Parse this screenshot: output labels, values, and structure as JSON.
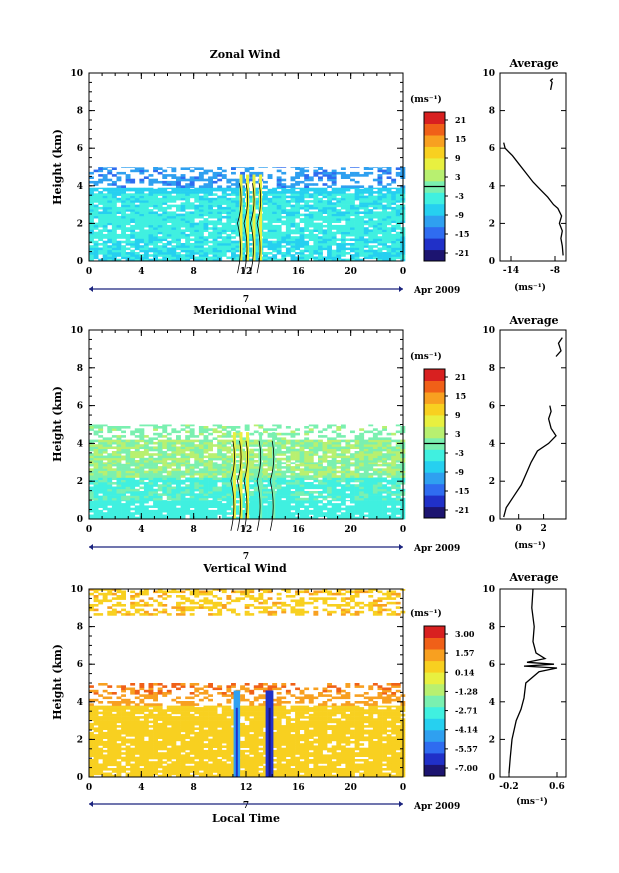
{
  "chart_data": [
    {
      "type": "heatmap",
      "title": "Zonal Wind",
      "ylabel": "Height (km)",
      "xlabel": "",
      "xlim": [
        0,
        24
      ],
      "ylim": [
        0,
        10
      ],
      "x_ticks": [
        "0",
        "4",
        "8",
        "12",
        "16",
        "20",
        "0"
      ],
      "y_ticks": [
        "0",
        "2",
        "4",
        "6",
        "8",
        "10"
      ],
      "date_label": "Apr 2009",
      "date_marker": "7",
      "colorbar": {
        "unit": "(ms⁻¹)",
        "ticks": [
          "21",
          "15",
          "9",
          "3",
          "-3",
          "-9",
          "-15",
          "-21"
        ],
        "range": [
          -24,
          24
        ],
        "zero_contour": true
      },
      "field": {
        "rows": [
          {
            "z_from": 0.0,
            "z_to": 1.2,
            "value": -5.5
          },
          {
            "z_from": 1.2,
            "z_to": 2.4,
            "value": -4.5
          },
          {
            "z_from": 2.4,
            "z_to": 3.6,
            "value": -5.0
          },
          {
            "z_from": 3.6,
            "z_to": 3.9,
            "value": -7.5
          },
          {
            "z_from": 3.9,
            "z_to": 5.0,
            "value": -12.0
          }
        ],
        "convective_window": [
          10.5,
          14.5
        ],
        "convective_top": 4.6
      },
      "average_profile": {
        "title": "Average",
        "xlabel": "(ms⁻¹)",
        "xlim": [
          -15.5,
          -6.5
        ],
        "x_ticks": [
          "-14",
          "-8"
        ],
        "x_tick_values": [
          -14,
          -8
        ],
        "y_ticks": [
          "0",
          "2",
          "4",
          "6",
          "8",
          "10"
        ],
        "points": [
          [
            -6.9,
            0.3
          ],
          [
            -7.0,
            0.8
          ],
          [
            -7.2,
            1.2
          ],
          [
            -7.0,
            1.6
          ],
          [
            -7.4,
            2.0
          ],
          [
            -7.1,
            2.4
          ],
          [
            -7.6,
            2.8
          ],
          [
            -8.2,
            3.0
          ],
          [
            -9.0,
            3.4
          ],
          [
            -10.0,
            3.8
          ],
          [
            -11.0,
            4.2
          ],
          [
            -12.0,
            4.7
          ],
          [
            -13.0,
            5.2
          ],
          [
            -13.8,
            5.6
          ],
          [
            -14.8,
            6.0
          ],
          [
            -15.0,
            6.3
          ]
        ],
        "points_upper": [
          [
            -8.6,
            9.1
          ],
          [
            -8.4,
            9.5
          ],
          [
            -8.6,
            9.6
          ],
          [
            -8.3,
            9.7
          ]
        ]
      }
    },
    {
      "type": "heatmap",
      "title": "Meridional Wind",
      "ylabel": "Height (km)",
      "xlabel": "",
      "xlim": [
        0,
        24
      ],
      "ylim": [
        0,
        10
      ],
      "x_ticks": [
        "0",
        "4",
        "8",
        "12",
        "16",
        "20",
        "0"
      ],
      "y_ticks": [
        "0",
        "2",
        "4",
        "6",
        "8",
        "10"
      ],
      "date_label": "Apr 2009",
      "date_marker": "7",
      "colorbar": {
        "unit": "(ms⁻¹)",
        "ticks": [
          "21",
          "15",
          "9",
          "3",
          "-3",
          "-9",
          "-15",
          "-21"
        ],
        "range": [
          -24,
          24
        ],
        "zero_contour": true
      },
      "field": {
        "rows": [
          {
            "z_from": 0.0,
            "z_to": 1.0,
            "value": -4.0
          },
          {
            "z_from": 1.0,
            "z_to": 2.2,
            "value": -2.5
          },
          {
            "z_from": 2.2,
            "z_to": 3.0,
            "value": 1.5
          },
          {
            "z_from": 3.0,
            "z_to": 4.2,
            "value": 2.0
          },
          {
            "z_from": 4.2,
            "z_to": 5.0,
            "value": 0.8
          }
        ],
        "convective_window": [
          10.5,
          14.5
        ],
        "convective_top": 4.6
      },
      "average_profile": {
        "title": "Average",
        "xlabel": "(ms⁻¹)",
        "xlim": [
          -1.5,
          3.8
        ],
        "x_ticks": [
          "0",
          "2"
        ],
        "x_tick_values": [
          0,
          2
        ],
        "y_ticks": [
          "0",
          "2",
          "4",
          "6",
          "8",
          "10"
        ],
        "points": [
          [
            -1.2,
            0.1
          ],
          [
            -1.0,
            0.6
          ],
          [
            -0.4,
            1.2
          ],
          [
            0.2,
            1.8
          ],
          [
            0.6,
            2.4
          ],
          [
            1.0,
            3.0
          ],
          [
            1.5,
            3.6
          ],
          [
            2.4,
            4.0
          ],
          [
            3.0,
            4.4
          ],
          [
            2.6,
            4.8
          ],
          [
            2.4,
            5.3
          ],
          [
            2.6,
            5.7
          ],
          [
            2.5,
            6.0
          ]
        ],
        "points_upper": [
          [
            3.0,
            8.6
          ],
          [
            3.4,
            8.9
          ],
          [
            3.2,
            9.3
          ],
          [
            3.5,
            9.6
          ]
        ]
      }
    },
    {
      "type": "heatmap",
      "title": "Vertical Wind",
      "ylabel": "Height (km)",
      "xlabel": "Local Time",
      "xlim": [
        0,
        24
      ],
      "ylim": [
        0,
        10
      ],
      "x_ticks": [
        "0",
        "4",
        "8",
        "12",
        "16",
        "20",
        "0"
      ],
      "y_ticks": [
        "0",
        "2",
        "4",
        "6",
        "8",
        "10"
      ],
      "date_label": "Apr 2009",
      "date_marker": "7",
      "colorbar": {
        "unit": "(ms⁻¹)",
        "ticks": [
          "3.00",
          "1.57",
          "0.14",
          "-1.28",
          "-2.71",
          "-4.14",
          "-5.57",
          "-7.00"
        ],
        "range": [
          -7.7,
          3.7
        ],
        "zero_contour": false
      },
      "field": {
        "rows": [
          {
            "z_from": 0.0,
            "z_to": 3.8,
            "value": 0.6
          },
          {
            "z_from": 3.8,
            "z_to": 4.4,
            "value": 1.4
          },
          {
            "z_from": 4.4,
            "z_to": 5.0,
            "value": 1.9
          },
          {
            "z_from": 8.6,
            "z_to": 10.0,
            "value": 0.9
          }
        ],
        "downdrafts": [
          {
            "x": 11.3,
            "width": 0.5,
            "value": -4.8
          },
          {
            "x": 13.8,
            "width": 0.6,
            "value": -6.5
          }
        ],
        "convective_top": 4.6
      },
      "average_profile": {
        "title": "Average",
        "xlabel": "(ms⁻¹)",
        "xlim": [
          -0.35,
          0.75
        ],
        "x_ticks": [
          "-0.2",
          "0.6"
        ],
        "x_tick_values": [
          -0.2,
          0.6
        ],
        "y_ticks": [
          "0",
          "2",
          "4",
          "6",
          "8",
          "10"
        ],
        "points": [
          [
            -0.2,
            0.2
          ],
          [
            -0.18,
            1.0
          ],
          [
            -0.15,
            2.0
          ],
          [
            -0.08,
            3.0
          ],
          [
            0.0,
            3.6
          ],
          [
            0.05,
            4.2
          ],
          [
            0.08,
            5.0
          ],
          [
            0.3,
            5.6
          ],
          [
            0.6,
            5.8
          ],
          [
            0.05,
            5.9
          ],
          [
            0.55,
            6.0
          ],
          [
            0.1,
            6.1
          ],
          [
            0.4,
            6.3
          ],
          [
            0.25,
            6.6
          ],
          [
            0.2,
            7.2
          ],
          [
            0.22,
            8.0
          ],
          [
            0.18,
            9.0
          ],
          [
            0.2,
            10.0
          ]
        ]
      }
    }
  ]
}
